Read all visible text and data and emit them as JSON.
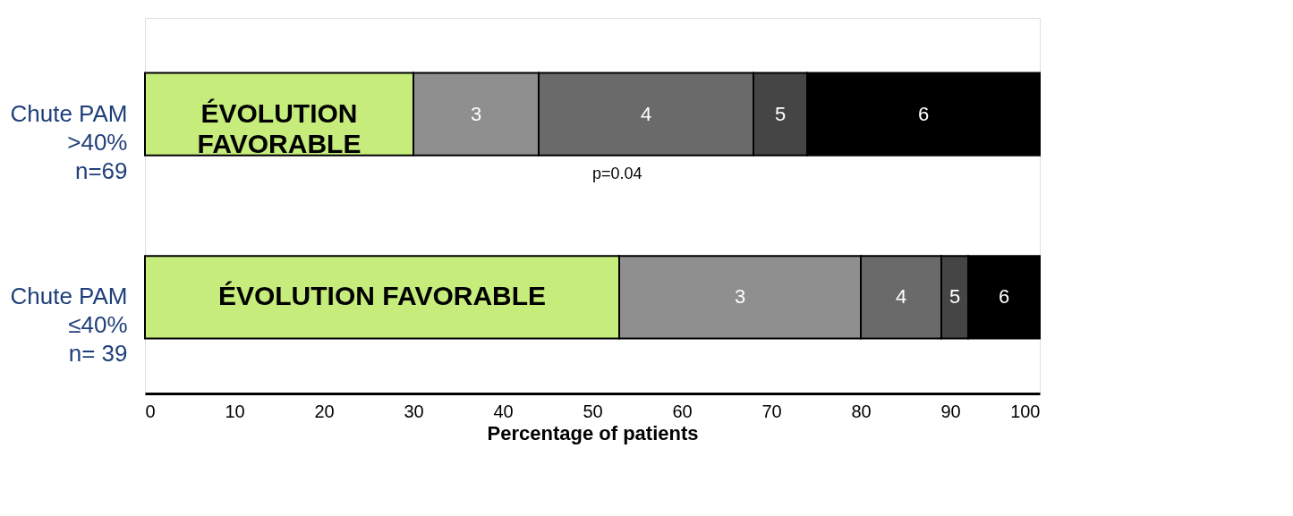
{
  "chart_data": {
    "type": "bar",
    "orientation": "horizontal",
    "stacked": true,
    "categories": [
      "Chute PAM\n>40%\nn=69",
      "Chute PAM\n≤40%\nn= 39"
    ],
    "series": [
      {
        "name": "ÉVOLUTION FAVORABLE",
        "color": "#c6ec7c",
        "values": [
          30,
          53
        ]
      },
      {
        "name": "3",
        "color": "#8f8f8f",
        "values": [
          14,
          27
        ]
      },
      {
        "name": "4",
        "color": "#6a6a6a",
        "values": [
          24,
          9
        ]
      },
      {
        "name": "5",
        "color": "#454545",
        "values": [
          6,
          3
        ]
      },
      {
        "name": "6",
        "color": "#000000",
        "values": [
          26,
          8
        ]
      }
    ],
    "xlabel": "Percentage of patients",
    "xlim": [
      0,
      100
    ],
    "xticks": [
      0,
      10,
      20,
      30,
      40,
      50,
      60,
      70,
      80,
      90,
      100
    ],
    "annotations": [
      "p=0.04"
    ],
    "grid": false,
    "legend": false
  }
}
